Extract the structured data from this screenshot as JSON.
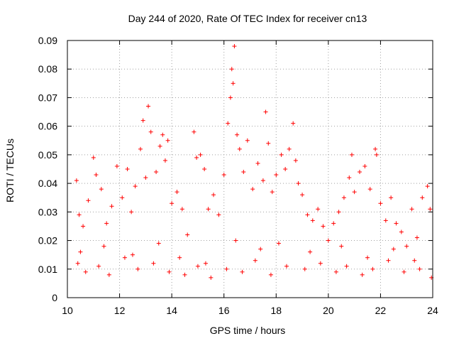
{
  "chart_data": {
    "type": "scatter",
    "title": "Day 244 of 2020, Rate Of TEC Index for receiver cn13",
    "xlabel": "GPS time / hours",
    "ylabel": "ROTI / TECUs",
    "xlim": [
      10,
      24
    ],
    "ylim": [
      0,
      0.09
    ],
    "xticks": [
      10,
      12,
      14,
      16,
      18,
      20,
      22,
      24
    ],
    "yticks": [
      0,
      0.01,
      0.02,
      0.03,
      0.04,
      0.05,
      0.06,
      0.07,
      0.08,
      0.09
    ],
    "xtick_labels": [
      "10",
      "12",
      "14",
      "16",
      "18",
      "20",
      "22",
      "24"
    ],
    "ytick_labels": [
      "0",
      "0.01",
      "0.02",
      "0.03",
      "0.04",
      "0.05",
      "0.06",
      "0.07",
      "0.08",
      "0.09"
    ],
    "grid": true,
    "marker": "+",
    "marker_color": "#ff0000",
    "series": [
      {
        "name": "cn13",
        "x": [
          10.35,
          10.45,
          10.6,
          10.8,
          11.0,
          11.1,
          11.3,
          11.5,
          11.7,
          11.9,
          12.1,
          12.3,
          12.45,
          12.6,
          12.8,
          12.9,
          13.0,
          13.1,
          13.2,
          13.4,
          13.55,
          13.65,
          13.75,
          13.85,
          14.0,
          14.2,
          14.4,
          14.6,
          14.85,
          14.95,
          15.1,
          15.25,
          15.4,
          15.6,
          15.8,
          16.0,
          16.15,
          16.25,
          16.3,
          16.35,
          16.4,
          16.5,
          16.6,
          16.75,
          16.9,
          17.1,
          17.3,
          17.5,
          17.6,
          17.7,
          17.85,
          18.0,
          18.2,
          18.35,
          18.5,
          18.65,
          18.75,
          18.85,
          19.0,
          19.2,
          19.4,
          19.6,
          19.8,
          20.0,
          20.2,
          20.4,
          20.6,
          20.8,
          20.9,
          21.0,
          21.2,
          21.4,
          21.6,
          21.8,
          21.85,
          22.0,
          22.2,
          22.4,
          22.6,
          22.8,
          23.0,
          23.2,
          23.4,
          23.6,
          23.8,
          23.9,
          10.4,
          10.7,
          11.2,
          11.6,
          12.2,
          12.7,
          13.3,
          13.9,
          14.5,
          15.0,
          15.5,
          16.1,
          16.7,
          17.2,
          17.8,
          18.4,
          19.1,
          19.7,
          20.3,
          20.7,
          21.3,
          21.7,
          22.3,
          22.9,
          23.5,
          23.95,
          10.5,
          11.4,
          12.5,
          13.5,
          14.3,
          15.3,
          16.45,
          17.4,
          18.1,
          19.3,
          20.5,
          21.5,
          22.5,
          23.3
        ],
        "y": [
          0.041,
          0.029,
          0.025,
          0.034,
          0.049,
          0.043,
          0.038,
          0.026,
          0.032,
          0.046,
          0.035,
          0.045,
          0.03,
          0.039,
          0.052,
          0.062,
          0.042,
          0.067,
          0.058,
          0.044,
          0.053,
          0.057,
          0.048,
          0.055,
          0.033,
          0.037,
          0.031,
          0.022,
          0.058,
          0.049,
          0.05,
          0.045,
          0.031,
          0.036,
          0.029,
          0.043,
          0.061,
          0.07,
          0.08,
          0.075,
          0.088,
          0.057,
          0.052,
          0.044,
          0.055,
          0.038,
          0.047,
          0.041,
          0.065,
          0.054,
          0.037,
          0.043,
          0.05,
          0.045,
          0.052,
          0.061,
          0.048,
          0.04,
          0.036,
          0.029,
          0.027,
          0.031,
          0.025,
          0.02,
          0.026,
          0.03,
          0.035,
          0.042,
          0.05,
          0.037,
          0.044,
          0.046,
          0.038,
          0.052,
          0.05,
          0.033,
          0.027,
          0.035,
          0.026,
          0.023,
          0.018,
          0.031,
          0.021,
          0.035,
          0.039,
          0.031,
          0.012,
          0.009,
          0.011,
          0.008,
          0.014,
          0.01,
          0.012,
          0.009,
          0.008,
          0.011,
          0.007,
          0.01,
          0.009,
          0.013,
          0.008,
          0.011,
          0.01,
          0.012,
          0.009,
          0.011,
          0.008,
          0.01,
          0.013,
          0.009,
          0.01,
          0.007,
          0.016,
          0.018,
          0.015,
          0.019,
          0.014,
          0.012,
          0.02,
          0.017,
          0.019,
          0.016,
          0.018,
          0.014,
          0.017,
          0.013
        ]
      }
    ]
  }
}
